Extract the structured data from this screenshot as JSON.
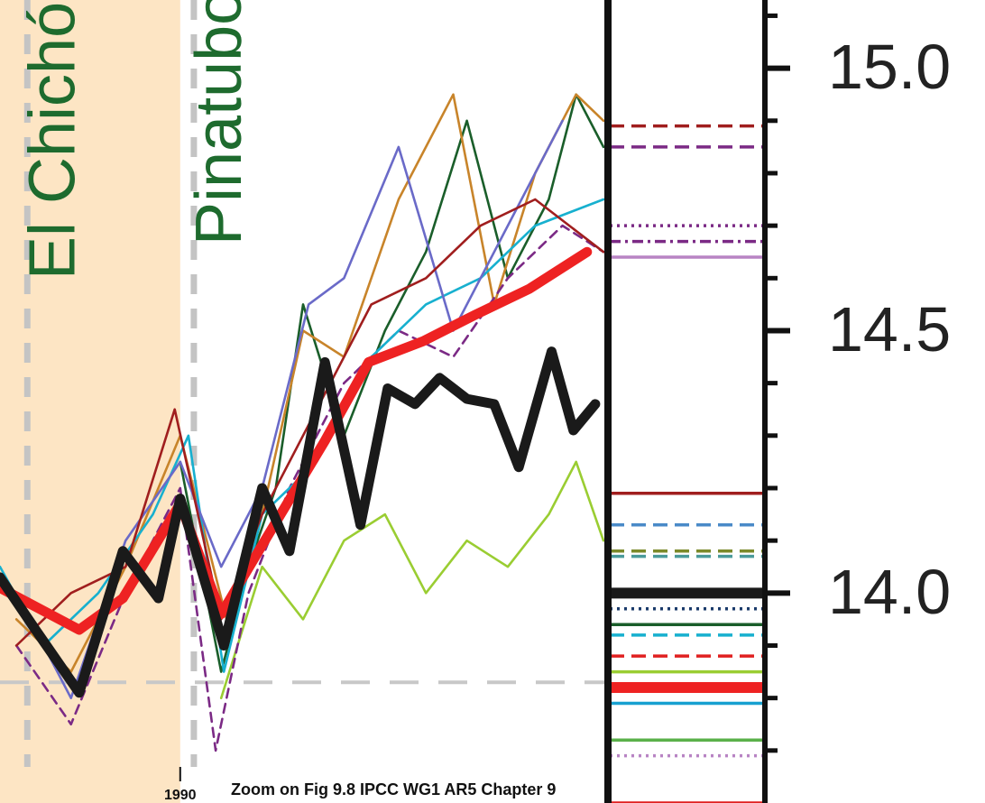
{
  "chart_data": {
    "type": "line",
    "annotation": "Zoom on Fig 9.8 IPCC WG1 AR5 Chapter 9",
    "xlim": [
      1983.4,
      2005.6
    ],
    "xticks": [
      1990
    ],
    "ylim": [
      13.6,
      15.13
    ],
    "yticks": [
      {
        "value": 14.0,
        "label": "14.0"
      },
      {
        "value": 14.5,
        "label": "14.5"
      },
      {
        "value": 15.0,
        "label": "15.0"
      }
    ],
    "yminorticks": [
      13.7,
      13.8,
      13.9,
      14.1,
      14.2,
      14.3,
      14.4,
      14.6,
      14.7,
      14.8,
      14.9,
      15.1
    ],
    "shade_x": [
      1983.4,
      1990
    ],
    "shade_color": "#fde5c4",
    "reference_line": 13.83,
    "volcanoes": [
      {
        "name": "El Chichón",
        "year": 1984.4
      },
      {
        "name": "Pinatubo",
        "year": 1990.5
      }
    ],
    "series": [
      {
        "color": "#1a5e2a",
        "dash": "solid",
        "x": [
          1990,
          1991.5,
          1992.5,
          1993.5,
          1994.5,
          1996,
          1997.5,
          1999,
          2000.5,
          2002,
          2003.5,
          2004.5,
          2005.5
        ],
        "values": [
          14.25,
          13.85,
          14.05,
          14.2,
          14.55,
          14.3,
          14.5,
          14.65,
          14.9,
          14.6,
          14.75,
          14.95,
          14.85
        ]
      },
      {
        "color": "#c8842a",
        "dash": "solid",
        "x": [
          1984,
          1986,
          1988,
          1990,
          1991.7,
          1993,
          1994.5,
          1996,
          1998,
          2000,
          2001.5,
          2003,
          2004.5,
          2005.5
        ],
        "values": [
          13.95,
          13.85,
          14.05,
          14.3,
          13.95,
          14.15,
          14.5,
          14.45,
          14.75,
          14.95,
          14.55,
          14.8,
          14.95,
          14.9
        ]
      },
      {
        "color": "#9acd32",
        "dash": "solid",
        "x": [
          1991.5,
          1993,
          1994.5,
          1996,
          1997.5,
          1999,
          2000.5,
          2002,
          2003.5,
          2004.5,
          2005.5
        ],
        "values": [
          13.8,
          14.05,
          13.95,
          14.1,
          14.15,
          14.0,
          14.1,
          14.05,
          14.15,
          14.25,
          14.1
        ]
      },
      {
        "color": "#7b2a85",
        "dash": "dashed",
        "x": [
          1984,
          1986,
          1988,
          1990,
          1991.3,
          1992.5,
          1994,
          1996,
          1998,
          2000,
          2002,
          2004,
          2005.5
        ],
        "values": [
          13.9,
          13.75,
          14.0,
          14.2,
          13.7,
          14.0,
          14.2,
          14.4,
          14.5,
          14.45,
          14.6,
          14.7,
          14.65
        ]
      },
      {
        "color": "#17b0cf",
        "dash": "solid",
        "x": [
          1983.4,
          1985,
          1987,
          1989,
          1990.3,
          1991.6,
          1993,
          1995,
          1997,
          1999,
          2001,
          2003,
          2005.5
        ],
        "values": [
          14.05,
          13.9,
          14.0,
          14.15,
          14.3,
          13.85,
          14.15,
          14.25,
          14.45,
          14.55,
          14.6,
          14.7,
          14.75
        ]
      },
      {
        "color": "#6a6ac8",
        "dash": "solid",
        "x": [
          1984,
          1986,
          1988,
          1990,
          1991.5,
          1993,
          1994.7,
          1996,
          1998,
          2000,
          2002,
          2004
        ],
        "values": [
          14.0,
          13.8,
          14.1,
          14.25,
          14.05,
          14.2,
          14.55,
          14.6,
          14.85,
          14.5,
          14.7,
          14.9
        ]
      },
      {
        "color": "#a01e1e",
        "dash": "solid",
        "x": [
          1984,
          1986,
          1988,
          1989.8,
          1991.5,
          1993,
          1995,
          1997,
          1999,
          2001,
          2003,
          2005.5
        ],
        "values": [
          13.9,
          14.0,
          14.05,
          14.35,
          13.95,
          14.15,
          14.35,
          14.55,
          14.6,
          14.7,
          14.75,
          14.65
        ]
      },
      {
        "color": "#ee2222",
        "dash": "thick",
        "x": [
          1983.4,
          1986.3,
          1987.9,
          1990.0,
          1991.5,
          1993.1,
          1995.3,
          1996.9,
          1998.9,
          2000.8,
          2002.8,
          2004.9
        ],
        "values": [
          14.01,
          13.93,
          13.99,
          14.17,
          13.96,
          14.1,
          14.29,
          14.44,
          14.48,
          14.53,
          14.58,
          14.65
        ]
      },
      {
        "color": "#1a1a1a",
        "dash": "thick",
        "x": [
          1983.4,
          1984.7,
          1986.3,
          1987.9,
          1989.2,
          1990.0,
          1991.6,
          1993.0,
          1994.0,
          1995.3,
          1996.6,
          1997.6,
          1998.6,
          1999.5,
          2000.5,
          2001.5,
          2002.4,
          2003.6,
          2004.4,
          2005.2
        ],
        "values": [
          14.03,
          13.93,
          13.81,
          14.08,
          13.99,
          14.18,
          13.9,
          14.2,
          14.08,
          14.44,
          14.13,
          14.39,
          14.36,
          14.41,
          14.37,
          14.36,
          14.24,
          14.46,
          14.31,
          14.36
        ]
      }
    ],
    "climatology": [
      {
        "value": 14.89,
        "color": "#a01e1e",
        "dash": "dashed"
      },
      {
        "value": 14.85,
        "color": "#7b2a85",
        "dash": "dashed"
      },
      {
        "value": 14.7,
        "color": "#7b2a85",
        "dash": "dotted"
      },
      {
        "value": 14.67,
        "color": "#7b2a85",
        "dash": "dashdot"
      },
      {
        "value": 14.64,
        "color": "#b884c4",
        "dash": "solid"
      },
      {
        "value": 14.19,
        "color": "#a01e1e",
        "dash": "solid"
      },
      {
        "value": 14.13,
        "color": "#4a8ac8",
        "dash": "dashed"
      },
      {
        "value": 14.08,
        "color": "#7b8a2a",
        "dash": "dashed"
      },
      {
        "value": 14.07,
        "color": "#4a9a9a",
        "dash": "dashed"
      },
      {
        "value": 14.0,
        "color": "#1a1a1a",
        "dash": "thick"
      },
      {
        "value": 13.97,
        "color": "#1a3a6a",
        "dash": "dotted"
      },
      {
        "value": 13.94,
        "color": "#1a5e2a",
        "dash": "solid"
      },
      {
        "value": 13.92,
        "color": "#17b0cf",
        "dash": "dashed"
      },
      {
        "value": 13.88,
        "color": "#e02020",
        "dash": "dashed"
      },
      {
        "value": 13.85,
        "color": "#9acd32",
        "dash": "solid"
      },
      {
        "value": 13.82,
        "color": "#ee2222",
        "dash": "thick"
      },
      {
        "value": 13.79,
        "color": "#17a0d0",
        "dash": "solid"
      },
      {
        "value": 13.72,
        "color": "#5ab04a",
        "dash": "solid"
      },
      {
        "value": 13.69,
        "color": "#b884c4",
        "dash": "dotted"
      },
      {
        "value": 13.6,
        "color": "#e02020",
        "dash": "solid"
      }
    ]
  }
}
